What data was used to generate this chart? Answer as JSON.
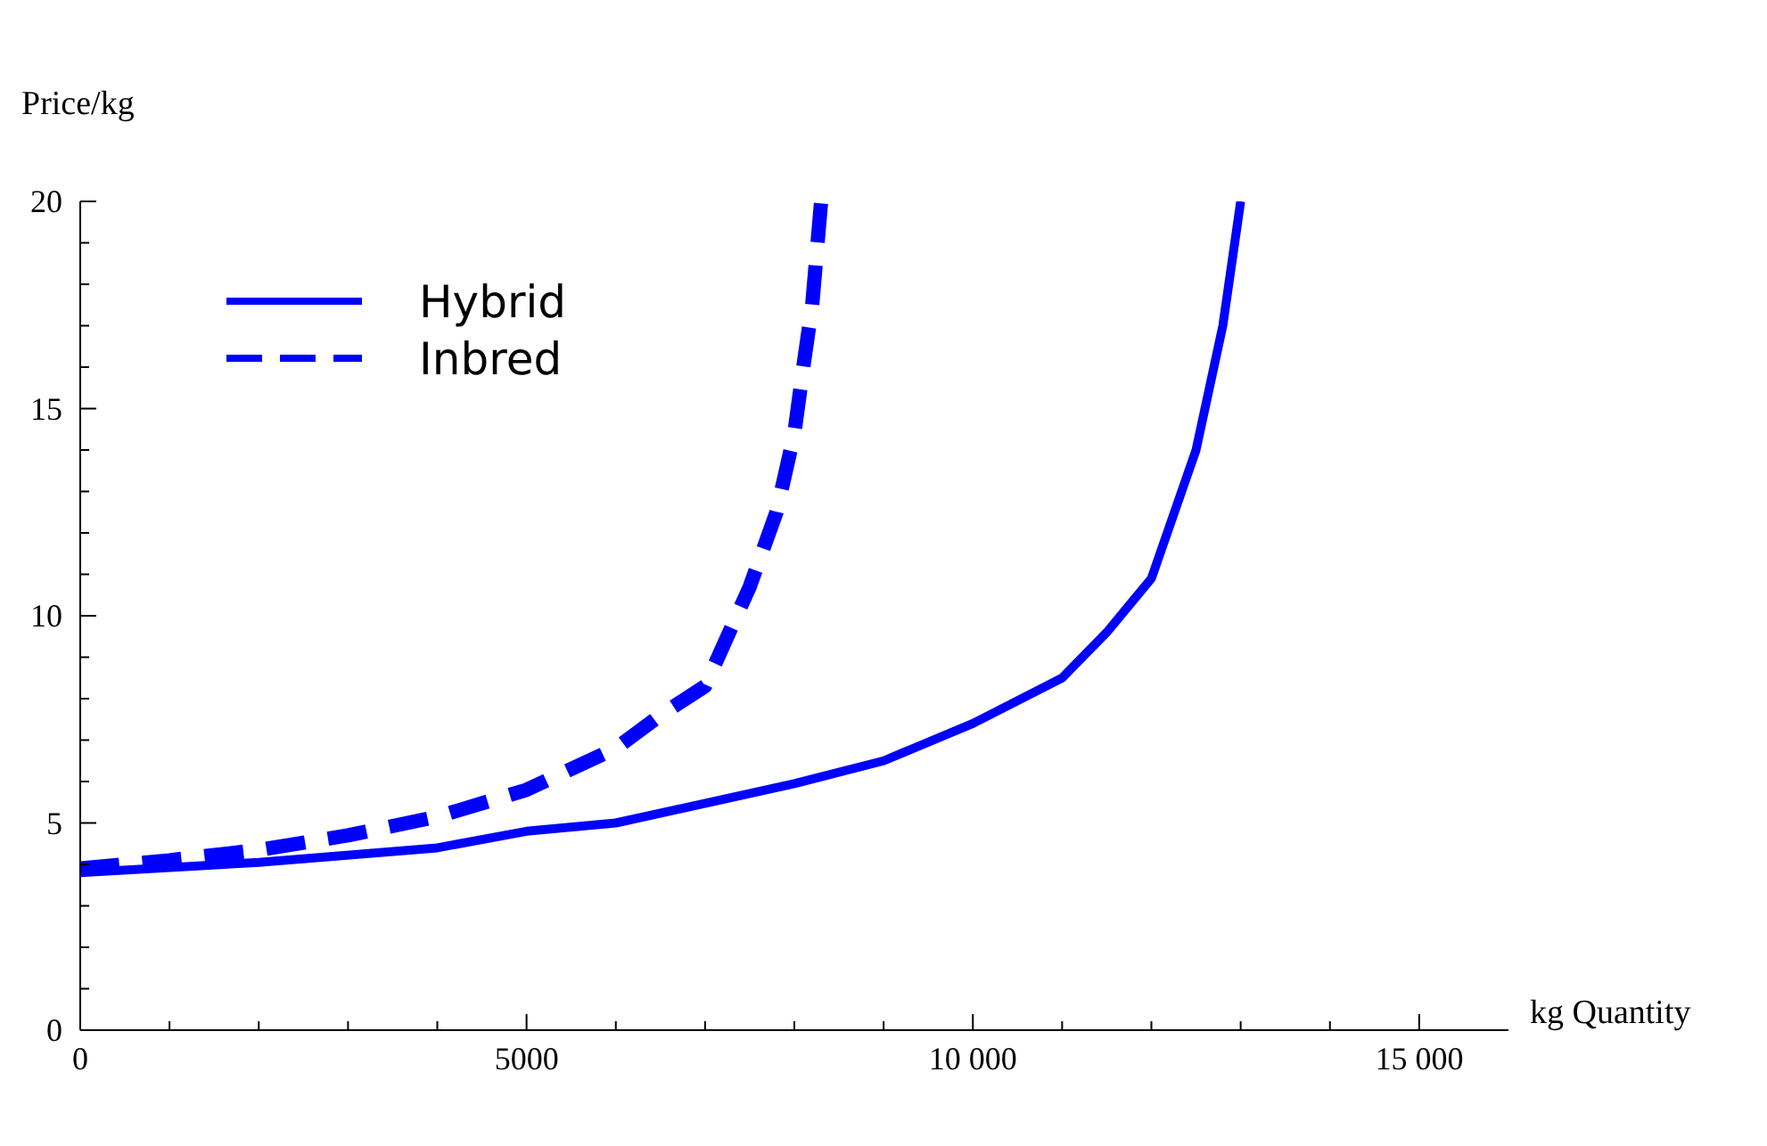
{
  "chart_data": {
    "type": "line",
    "xlabel": "kg Quantity",
    "ylabel": "Price/kg",
    "xlim": [
      0,
      16000
    ],
    "ylim": [
      0,
      20
    ],
    "xticks": [
      0,
      {
        "value": 1000,
        "label": null
      },
      {
        "value": 2000,
        "label": null
      },
      {
        "value": 3000,
        "label": null
      },
      {
        "value": 4000,
        "label": null
      },
      5000,
      {
        "value": 6000,
        "label": null
      },
      {
        "value": 7000,
        "label": null
      },
      {
        "value": 8000,
        "label": null
      },
      {
        "value": 9000,
        "label": null
      },
      {
        "value": 10000,
        "label": "10 000"
      },
      {
        "value": 11000,
        "label": null
      },
      {
        "value": 12000,
        "label": null
      },
      {
        "value": 13000,
        "label": null
      },
      {
        "value": 14000,
        "label": null
      },
      {
        "value": 15000,
        "label": "15 000"
      }
    ],
    "yticks": [
      0,
      {
        "value": 1,
        "label": null
      },
      {
        "value": 2,
        "label": null
      },
      {
        "value": 3,
        "label": null
      },
      {
        "value": 4,
        "label": null
      },
      5,
      {
        "value": 6,
        "label": null
      },
      {
        "value": 7,
        "label": null
      },
      {
        "value": 8,
        "label": null
      },
      {
        "value": 9,
        "label": null
      },
      10,
      {
        "value": 11,
        "label": null
      },
      {
        "value": 12,
        "label": null
      },
      {
        "value": 13,
        "label": null
      },
      {
        "value": 14,
        "label": null
      },
      15,
      {
        "value": 16,
        "label": null
      },
      {
        "value": 17,
        "label": null
      },
      {
        "value": 18,
        "label": null
      },
      {
        "value": 19,
        "label": null
      },
      20
    ],
    "legend": "top left",
    "grid": false,
    "marker": "none",
    "series": [
      {
        "name": "Hybrid",
        "color": "#0000ff",
        "line_style": "solid",
        "x": [
          0,
          2000,
          4000,
          5000,
          6000,
          8000,
          9000,
          10000,
          11000,
          11500,
          12000,
          12500,
          12800,
          13000
        ],
        "values": [
          3.8,
          4.05,
          4.4,
          4.8,
          5.0,
          5.95,
          6.5,
          7.4,
          8.5,
          9.6,
          10.9,
          14,
          17,
          20
        ]
      },
      {
        "name": "Inbred",
        "color": "#0000ff",
        "line_style": "dashed",
        "x": [
          0,
          1000,
          2000,
          3000,
          4000,
          5000,
          6000,
          6500,
          7000,
          7500,
          7800,
          8000,
          8100,
          8200,
          8300
        ],
        "values": [
          3.9,
          4.1,
          4.35,
          4.7,
          5.15,
          5.8,
          6.8,
          7.6,
          8.3,
          10.7,
          12.5,
          14.4,
          16,
          17.5,
          20
        ]
      }
    ]
  }
}
